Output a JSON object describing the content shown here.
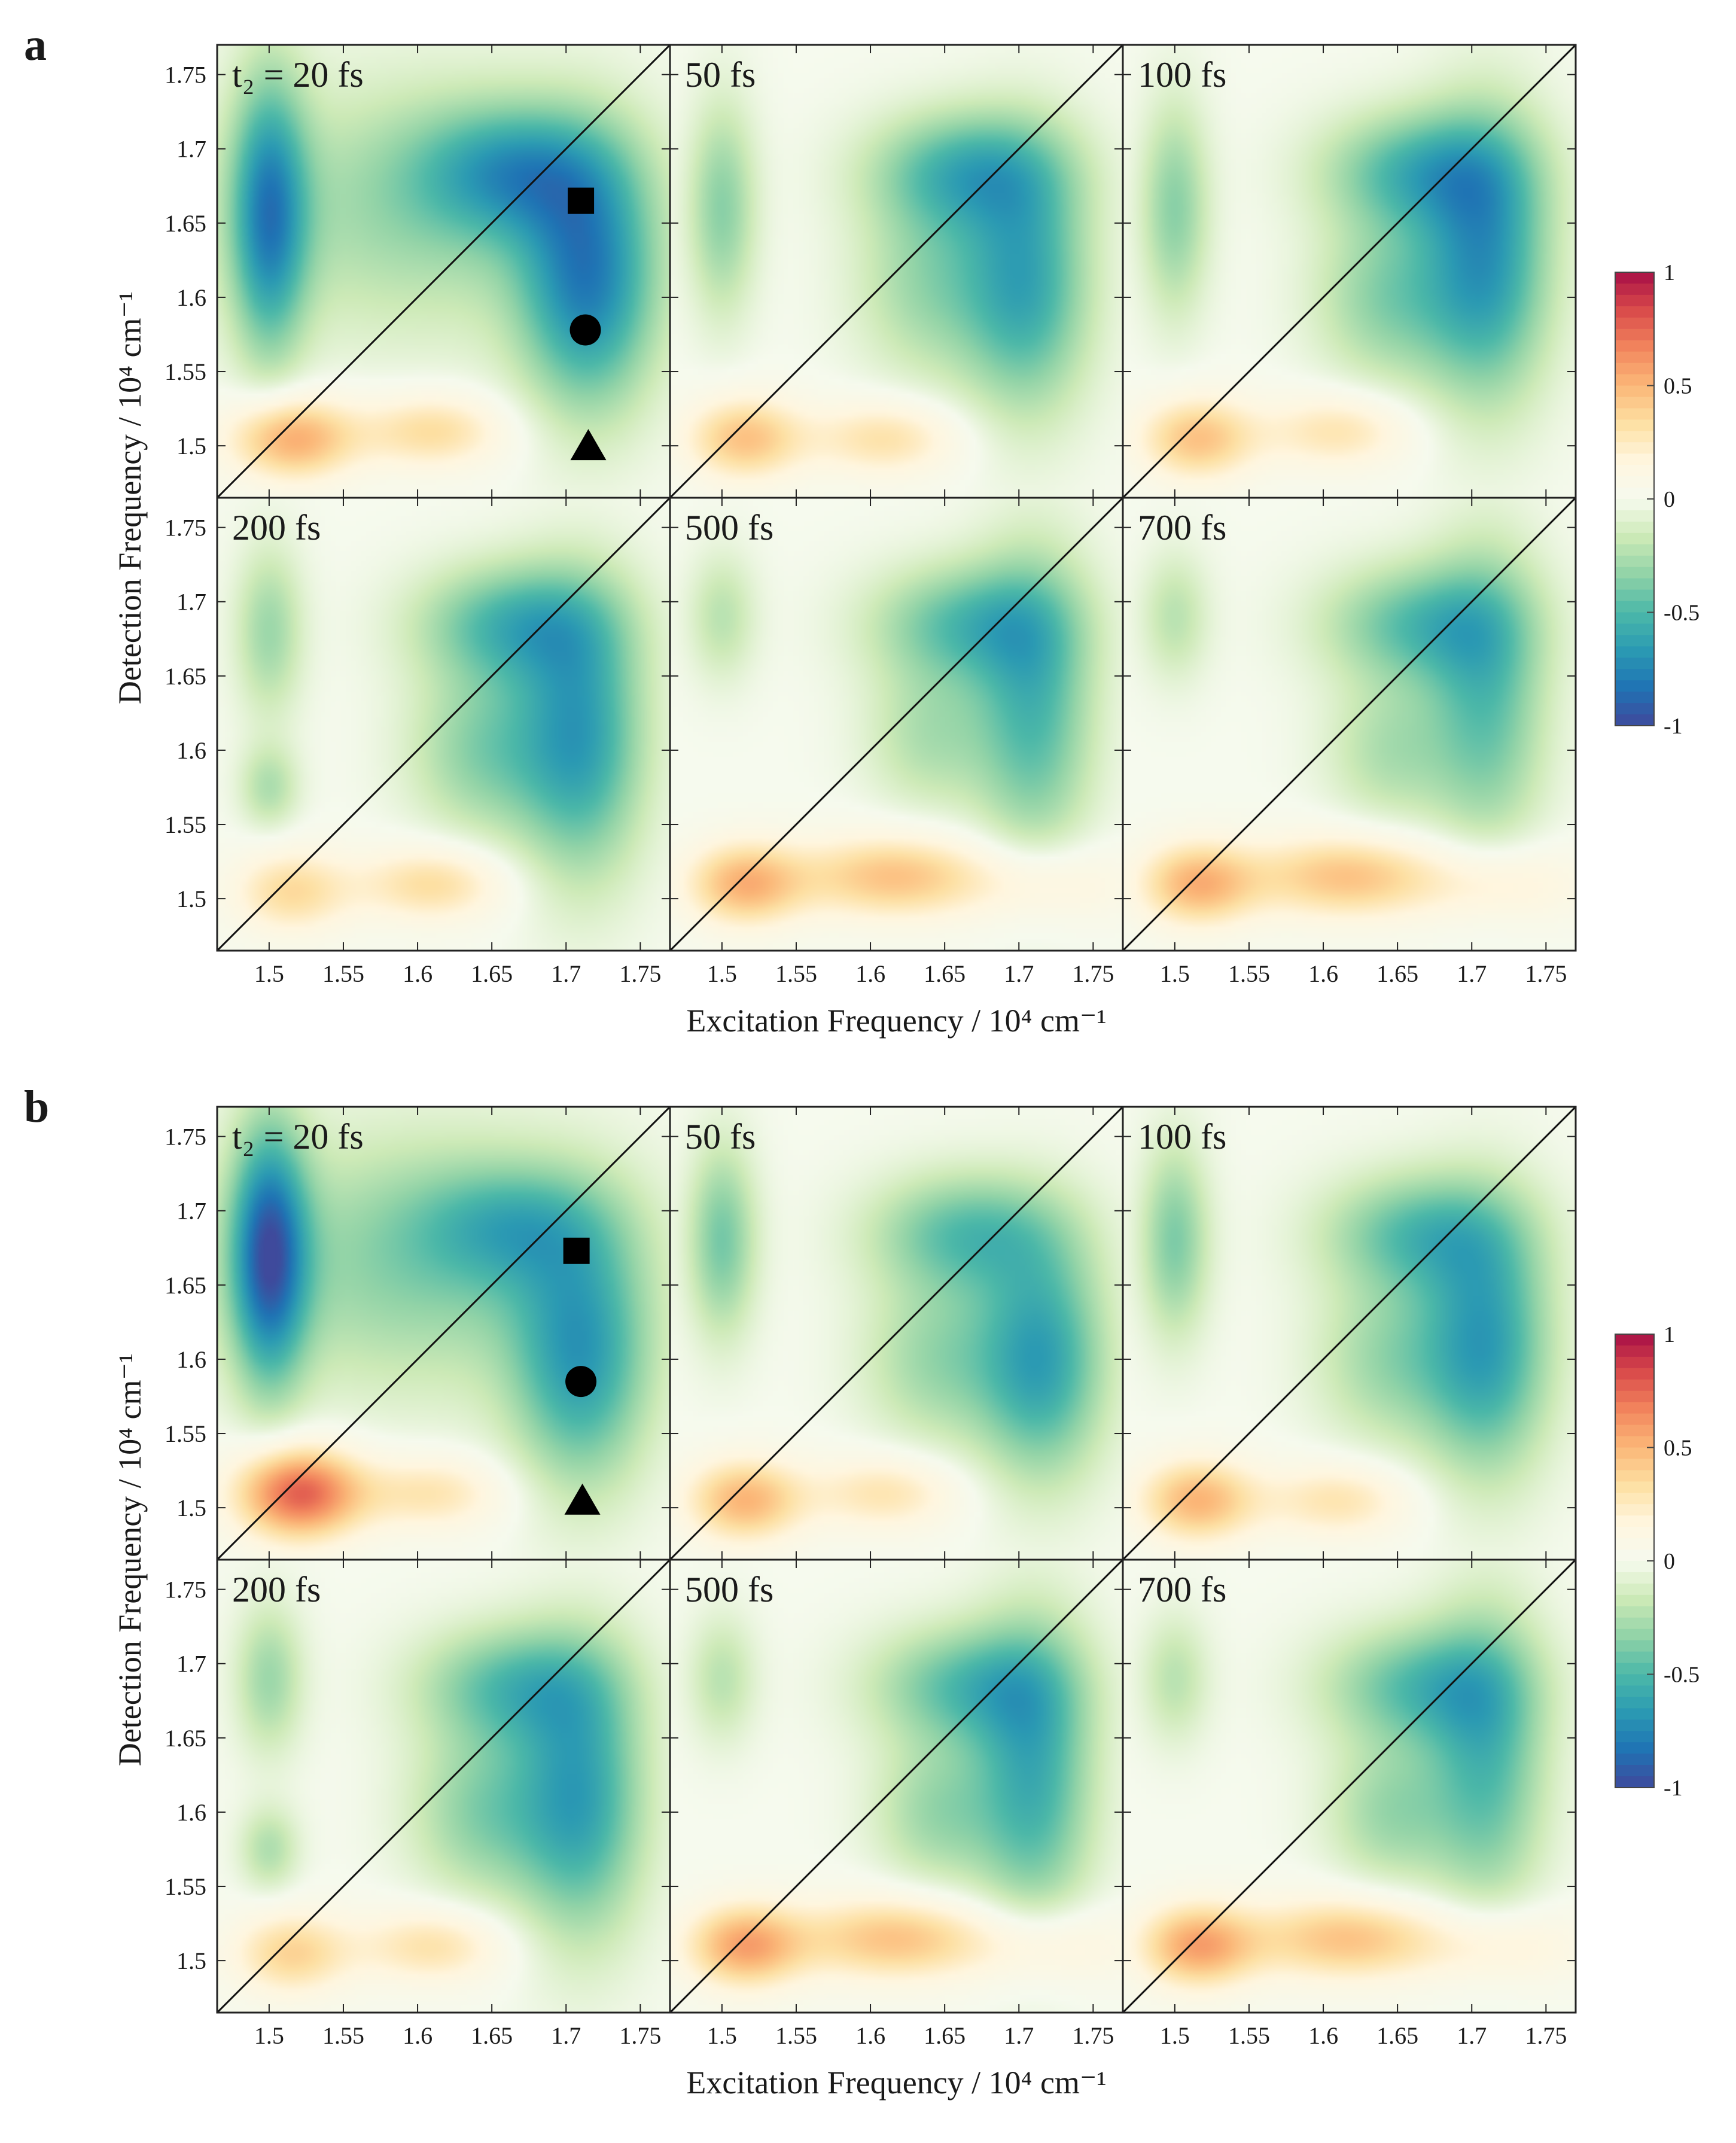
{
  "figure": {
    "panels": [
      {
        "letter": "a",
        "xlabel": "Excitation Frequency / 10⁴ cm⁻¹",
        "ylabel": "Detection Frequency / 10⁴ cm⁻¹",
        "subplots": [
          {
            "label": "t₂ = 20 fs",
            "t2_fs": 20
          },
          {
            "label": "50 fs",
            "t2_fs": 50
          },
          {
            "label": "100 fs",
            "t2_fs": 100
          },
          {
            "label": "200 fs",
            "t2_fs": 200
          },
          {
            "label": "500 fs",
            "t2_fs": 500
          },
          {
            "label": "700 fs",
            "t2_fs": 700
          }
        ],
        "markers": [
          {
            "shape": "square",
            "x": 1.71,
            "y": 1.665
          },
          {
            "shape": "circle",
            "x": 1.713,
            "y": 1.578
          },
          {
            "shape": "triangle",
            "x": 1.715,
            "y": 1.5
          }
        ]
      },
      {
        "letter": "b",
        "xlabel": "Excitation Frequency / 10⁴ cm⁻¹",
        "ylabel": "Detection Frequency / 10⁴ cm⁻¹",
        "subplots": [
          {
            "label": "t₂ = 20 fs",
            "t2_fs": 20
          },
          {
            "label": "50 fs",
            "t2_fs": 50
          },
          {
            "label": "100 fs",
            "t2_fs": 100
          },
          {
            "label": "200 fs",
            "t2_fs": 200
          },
          {
            "label": "500 fs",
            "t2_fs": 500
          },
          {
            "label": "700 fs",
            "t2_fs": 700
          }
        ],
        "markers": [
          {
            "shape": "square",
            "x": 1.707,
            "y": 1.673
          },
          {
            "shape": "circle",
            "x": 1.71,
            "y": 1.585
          },
          {
            "shape": "triangle",
            "x": 1.711,
            "y": 1.505
          }
        ]
      }
    ]
  },
  "chart_data": {
    "type": "heatmap",
    "title": "",
    "xlabel": "Excitation Frequency / 10⁴ cm⁻¹",
    "ylabel": "Detection Frequency / 10⁴ cm⁻¹",
    "xlim": [
      1.465,
      1.77
    ],
    "ylim": [
      1.465,
      1.77
    ],
    "xticks": [
      1.5,
      1.55,
      1.6,
      1.65,
      1.7,
      1.75
    ],
    "yticks": [
      1.5,
      1.55,
      1.6,
      1.65,
      1.7,
      1.75
    ],
    "xtick_labels": [
      "1.5",
      "1.55",
      "1.6",
      "1.65",
      "1.7",
      "1.75"
    ],
    "ytick_labels": [
      "1.5",
      "1.55",
      "1.6",
      "1.65",
      "1.7",
      "1.75"
    ],
    "diagonal": true,
    "colorbar": {
      "range": [
        -1,
        1
      ],
      "ticks": [
        1,
        0.5,
        0,
        -0.5,
        -1
      ],
      "tick_labels": [
        "1",
        "0.5",
        "0",
        "-0.5",
        "-1"
      ],
      "colormap": [
        "#3f4a9c",
        "#1f73b4",
        "#2b9ab3",
        "#4cb8a8",
        "#91d3a7",
        "#cdeab7",
        "#f6faee",
        "#fff6df",
        "#fde0a3",
        "#fbb778",
        "#f2855d",
        "#d94a4a",
        "#a80f46"
      ]
    },
    "t2_fs": [
      20,
      50,
      100,
      200,
      500,
      700
    ],
    "panels": [
      {
        "id": "a",
        "maps": [
          {
            "t2_fs": 20,
            "features": [
              {
                "x": 1.5,
                "y": 1.655,
                "sx": 0.018,
                "sy": 0.065,
                "amp": -0.7
              },
              {
                "x": 1.665,
                "y": 1.685,
                "sx": 0.045,
                "sy": 0.03,
                "amp": -0.5
              },
              {
                "x": 1.715,
                "y": 1.61,
                "sx": 0.032,
                "sy": 0.06,
                "amp": -0.72
              },
              {
                "x": 1.6,
                "y": 1.66,
                "sx": 0.09,
                "sy": 0.06,
                "amp": -0.3
              },
              {
                "x": 1.515,
                "y": 1.505,
                "sx": 0.03,
                "sy": 0.02,
                "amp": 0.55
              },
              {
                "x": 1.61,
                "y": 1.51,
                "sx": 0.035,
                "sy": 0.018,
                "amp": 0.35
              }
            ]
          },
          {
            "t2_fs": 50,
            "features": [
              {
                "x": 1.5,
                "y": 1.66,
                "sx": 0.016,
                "sy": 0.05,
                "amp": -0.35
              },
              {
                "x": 1.665,
                "y": 1.685,
                "sx": 0.045,
                "sy": 0.028,
                "amp": -0.5
              },
              {
                "x": 1.705,
                "y": 1.61,
                "sx": 0.03,
                "sy": 0.06,
                "amp": -0.58
              },
              {
                "x": 1.64,
                "y": 1.61,
                "sx": 0.035,
                "sy": 0.045,
                "amp": -0.3
              },
              {
                "x": 1.515,
                "y": 1.505,
                "sx": 0.028,
                "sy": 0.02,
                "amp": 0.45
              },
              {
                "x": 1.61,
                "y": 1.505,
                "sx": 0.035,
                "sy": 0.018,
                "amp": 0.32
              }
            ]
          },
          {
            "t2_fs": 100,
            "features": [
              {
                "x": 1.5,
                "y": 1.66,
                "sx": 0.016,
                "sy": 0.05,
                "amp": -0.35
              },
              {
                "x": 1.665,
                "y": 1.685,
                "sx": 0.045,
                "sy": 0.028,
                "amp": -0.5
              },
              {
                "x": 1.71,
                "y": 1.625,
                "sx": 0.03,
                "sy": 0.065,
                "amp": -0.65
              },
              {
                "x": 1.645,
                "y": 1.6,
                "sx": 0.035,
                "sy": 0.04,
                "amp": -0.35
              },
              {
                "x": 1.515,
                "y": 1.505,
                "sx": 0.028,
                "sy": 0.02,
                "amp": 0.45
              },
              {
                "x": 1.61,
                "y": 1.51,
                "sx": 0.035,
                "sy": 0.018,
                "amp": 0.3
              }
            ]
          },
          {
            "t2_fs": 200,
            "features": [
              {
                "x": 1.5,
                "y": 1.68,
                "sx": 0.016,
                "sy": 0.04,
                "amp": -0.3
              },
              {
                "x": 1.5,
                "y": 1.575,
                "sx": 0.014,
                "sy": 0.02,
                "amp": -0.25
              },
              {
                "x": 1.665,
                "y": 1.685,
                "sx": 0.045,
                "sy": 0.028,
                "amp": -0.5
              },
              {
                "x": 1.71,
                "y": 1.61,
                "sx": 0.03,
                "sy": 0.065,
                "amp": -0.62
              },
              {
                "x": 1.645,
                "y": 1.6,
                "sx": 0.035,
                "sy": 0.04,
                "amp": -0.35
              },
              {
                "x": 1.515,
                "y": 1.505,
                "sx": 0.028,
                "sy": 0.02,
                "amp": 0.35
              },
              {
                "x": 1.61,
                "y": 1.51,
                "sx": 0.035,
                "sy": 0.018,
                "amp": 0.35
              }
            ]
          },
          {
            "t2_fs": 500,
            "features": [
              {
                "x": 1.5,
                "y": 1.69,
                "sx": 0.016,
                "sy": 0.03,
                "amp": -0.22
              },
              {
                "x": 1.665,
                "y": 1.685,
                "sx": 0.045,
                "sy": 0.028,
                "amp": -0.45
              },
              {
                "x": 1.71,
                "y": 1.63,
                "sx": 0.028,
                "sy": 0.07,
                "amp": -0.5
              },
              {
                "x": 1.64,
                "y": 1.61,
                "sx": 0.03,
                "sy": 0.035,
                "amp": -0.25
              },
              {
                "x": 1.515,
                "y": 1.51,
                "sx": 0.028,
                "sy": 0.02,
                "amp": 0.5
              },
              {
                "x": 1.615,
                "y": 1.515,
                "sx": 0.045,
                "sy": 0.02,
                "amp": 0.45
              },
              {
                "x": 1.72,
                "y": 1.51,
                "sx": 0.04,
                "sy": 0.02,
                "amp": 0.2
              }
            ]
          },
          {
            "t2_fs": 700,
            "features": [
              {
                "x": 1.5,
                "y": 1.69,
                "sx": 0.016,
                "sy": 0.03,
                "amp": -0.22
              },
              {
                "x": 1.665,
                "y": 1.685,
                "sx": 0.045,
                "sy": 0.028,
                "amp": -0.45
              },
              {
                "x": 1.71,
                "y": 1.635,
                "sx": 0.028,
                "sy": 0.07,
                "amp": -0.45
              },
              {
                "x": 1.645,
                "y": 1.6,
                "sx": 0.03,
                "sy": 0.035,
                "amp": -0.25
              },
              {
                "x": 1.515,
                "y": 1.51,
                "sx": 0.028,
                "sy": 0.02,
                "amp": 0.5
              },
              {
                "x": 1.615,
                "y": 1.515,
                "sx": 0.045,
                "sy": 0.02,
                "amp": 0.45
              },
              {
                "x": 1.72,
                "y": 1.51,
                "sx": 0.04,
                "sy": 0.02,
                "amp": 0.22
              }
            ]
          }
        ]
      },
      {
        "id": "b",
        "maps": [
          {
            "t2_fs": 20,
            "features": [
              {
                "x": 1.5,
                "y": 1.67,
                "sx": 0.018,
                "sy": 0.06,
                "amp": -0.85
              },
              {
                "x": 1.6,
                "y": 1.665,
                "sx": 0.09,
                "sy": 0.06,
                "amp": -0.35
              },
              {
                "x": 1.665,
                "y": 1.69,
                "sx": 0.045,
                "sy": 0.028,
                "amp": -0.35
              },
              {
                "x": 1.71,
                "y": 1.6,
                "sx": 0.032,
                "sy": 0.06,
                "amp": -0.6
              },
              {
                "x": 1.52,
                "y": 1.51,
                "sx": 0.03,
                "sy": 0.022,
                "amp": 0.78
              },
              {
                "x": 1.61,
                "y": 1.51,
                "sx": 0.035,
                "sy": 0.018,
                "amp": 0.3
              }
            ]
          },
          {
            "t2_fs": 50,
            "features": [
              {
                "x": 1.5,
                "y": 1.68,
                "sx": 0.016,
                "sy": 0.045,
                "amp": -0.4
              },
              {
                "x": 1.665,
                "y": 1.685,
                "sx": 0.045,
                "sy": 0.028,
                "amp": -0.45
              },
              {
                "x": 1.715,
                "y": 1.6,
                "sx": 0.03,
                "sy": 0.055,
                "amp": -0.62
              },
              {
                "x": 1.645,
                "y": 1.6,
                "sx": 0.035,
                "sy": 0.04,
                "amp": -0.3
              },
              {
                "x": 1.515,
                "y": 1.505,
                "sx": 0.028,
                "sy": 0.02,
                "amp": 0.5
              },
              {
                "x": 1.61,
                "y": 1.51,
                "sx": 0.035,
                "sy": 0.018,
                "amp": 0.3
              }
            ]
          },
          {
            "t2_fs": 100,
            "features": [
              {
                "x": 1.5,
                "y": 1.68,
                "sx": 0.016,
                "sy": 0.045,
                "amp": -0.38
              },
              {
                "x": 1.665,
                "y": 1.685,
                "sx": 0.045,
                "sy": 0.028,
                "amp": -0.45
              },
              {
                "x": 1.71,
                "y": 1.61,
                "sx": 0.03,
                "sy": 0.06,
                "amp": -0.62
              },
              {
                "x": 1.645,
                "y": 1.6,
                "sx": 0.035,
                "sy": 0.04,
                "amp": -0.3
              },
              {
                "x": 1.515,
                "y": 1.505,
                "sx": 0.028,
                "sy": 0.02,
                "amp": 0.5
              },
              {
                "x": 1.61,
                "y": 1.505,
                "sx": 0.035,
                "sy": 0.018,
                "amp": 0.3
              }
            ]
          },
          {
            "t2_fs": 200,
            "features": [
              {
                "x": 1.5,
                "y": 1.69,
                "sx": 0.016,
                "sy": 0.035,
                "amp": -0.3
              },
              {
                "x": 1.5,
                "y": 1.575,
                "sx": 0.014,
                "sy": 0.02,
                "amp": -0.25
              },
              {
                "x": 1.665,
                "y": 1.685,
                "sx": 0.045,
                "sy": 0.028,
                "amp": -0.45
              },
              {
                "x": 1.71,
                "y": 1.61,
                "sx": 0.03,
                "sy": 0.065,
                "amp": -0.6
              },
              {
                "x": 1.645,
                "y": 1.6,
                "sx": 0.035,
                "sy": 0.04,
                "amp": -0.35
              },
              {
                "x": 1.515,
                "y": 1.505,
                "sx": 0.028,
                "sy": 0.02,
                "amp": 0.38
              },
              {
                "x": 1.61,
                "y": 1.51,
                "sx": 0.035,
                "sy": 0.018,
                "amp": 0.32
              }
            ]
          },
          {
            "t2_fs": 500,
            "features": [
              {
                "x": 1.5,
                "y": 1.69,
                "sx": 0.016,
                "sy": 0.03,
                "amp": -0.22
              },
              {
                "x": 1.665,
                "y": 1.685,
                "sx": 0.045,
                "sy": 0.028,
                "amp": -0.45
              },
              {
                "x": 1.71,
                "y": 1.625,
                "sx": 0.028,
                "sy": 0.07,
                "amp": -0.55
              },
              {
                "x": 1.645,
                "y": 1.6,
                "sx": 0.03,
                "sy": 0.035,
                "amp": -0.3
              },
              {
                "x": 1.515,
                "y": 1.51,
                "sx": 0.028,
                "sy": 0.02,
                "amp": 0.55
              },
              {
                "x": 1.615,
                "y": 1.515,
                "sx": 0.045,
                "sy": 0.02,
                "amp": 0.45
              },
              {
                "x": 1.72,
                "y": 1.51,
                "sx": 0.04,
                "sy": 0.02,
                "amp": 0.22
              }
            ]
          },
          {
            "t2_fs": 700,
            "features": [
              {
                "x": 1.5,
                "y": 1.69,
                "sx": 0.016,
                "sy": 0.03,
                "amp": -0.22
              },
              {
                "x": 1.665,
                "y": 1.685,
                "sx": 0.045,
                "sy": 0.028,
                "amp": -0.45
              },
              {
                "x": 1.71,
                "y": 1.635,
                "sx": 0.028,
                "sy": 0.07,
                "amp": -0.48
              },
              {
                "x": 1.645,
                "y": 1.6,
                "sx": 0.03,
                "sy": 0.035,
                "amp": -0.3
              },
              {
                "x": 1.515,
                "y": 1.51,
                "sx": 0.028,
                "sy": 0.02,
                "amp": 0.55
              },
              {
                "x": 1.615,
                "y": 1.515,
                "sx": 0.045,
                "sy": 0.02,
                "amp": 0.45
              },
              {
                "x": 1.72,
                "y": 1.51,
                "sx": 0.04,
                "sy": 0.02,
                "amp": 0.22
              }
            ]
          }
        ]
      }
    ]
  }
}
